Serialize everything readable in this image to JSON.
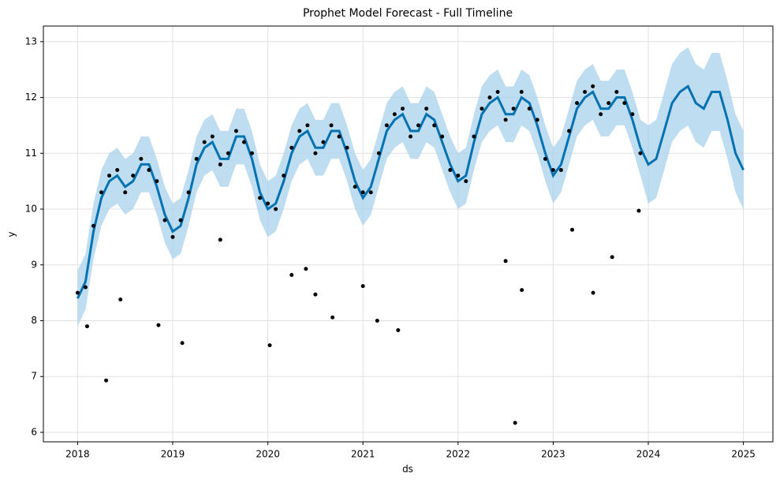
{
  "chart_data": {
    "type": "line",
    "title": "Prophet Model Forecast - Full Timeline",
    "xlabel": "ds",
    "ylabel": "y",
    "xlim": [
      2017.64,
      2025.31
    ],
    "ylim": [
      5.83,
      13.28
    ],
    "xticks": [
      2018,
      2019,
      2020,
      2021,
      2022,
      2023,
      2024,
      2025
    ],
    "yticks": [
      6,
      7,
      8,
      9,
      10,
      11,
      12,
      13
    ],
    "grid": true,
    "forecast": {
      "color": "#0072b2",
      "band_color": "#a9d2ec",
      "x": [
        2018,
        2018.083,
        2018.167,
        2018.25,
        2018.333,
        2018.417,
        2018.5,
        2018.583,
        2018.667,
        2018.75,
        2018.833,
        2018.917,
        2019,
        2019.083,
        2019.167,
        2019.25,
        2019.333,
        2019.417,
        2019.5,
        2019.583,
        2019.667,
        2019.75,
        2019.833,
        2019.917,
        2020,
        2020.083,
        2020.167,
        2020.25,
        2020.333,
        2020.417,
        2020.5,
        2020.583,
        2020.667,
        2020.75,
        2020.833,
        2020.917,
        2021,
        2021.083,
        2021.167,
        2021.25,
        2021.333,
        2021.417,
        2021.5,
        2021.583,
        2021.667,
        2021.75,
        2021.833,
        2021.917,
        2022,
        2022.083,
        2022.167,
        2022.25,
        2022.333,
        2022.417,
        2022.5,
        2022.583,
        2022.667,
        2022.75,
        2022.833,
        2022.917,
        2023,
        2023.083,
        2023.167,
        2023.25,
        2023.333,
        2023.417,
        2023.5,
        2023.583,
        2023.667,
        2023.75,
        2023.833,
        2023.917,
        2024,
        2024.083,
        2024.167,
        2024.25,
        2024.333,
        2024.417,
        2024.5,
        2024.583,
        2024.667,
        2024.75,
        2024.833,
        2024.917,
        2025
      ],
      "yhat": [
        8.4,
        8.7,
        9.6,
        10.2,
        10.5,
        10.6,
        10.4,
        10.5,
        10.8,
        10.8,
        10.4,
        9.9,
        9.6,
        9.7,
        10.2,
        10.8,
        11.1,
        11.2,
        10.9,
        10.9,
        11.3,
        11.3,
        10.9,
        10.3,
        10.0,
        10.1,
        10.5,
        11.0,
        11.3,
        11.4,
        11.1,
        11.1,
        11.4,
        11.4,
        11.0,
        10.5,
        10.2,
        10.4,
        10.9,
        11.4,
        11.6,
        11.7,
        11.4,
        11.4,
        11.7,
        11.6,
        11.2,
        10.8,
        10.5,
        10.6,
        11.2,
        11.7,
        11.9,
        12.0,
        11.7,
        11.7,
        12.0,
        11.9,
        11.5,
        11.0,
        10.6,
        10.8,
        11.3,
        11.8,
        12.0,
        12.1,
        11.8,
        11.8,
        12.0,
        12.0,
        11.6,
        11.1,
        10.8,
        10.9,
        11.4,
        11.9,
        12.1,
        12.2,
        11.9,
        11.8,
        12.1,
        12.1,
        11.6,
        11.0,
        10.7
      ],
      "yhat_lower": [
        7.9,
        8.2,
        9.1,
        9.7,
        10.0,
        10.1,
        9.9,
        10.0,
        10.3,
        10.3,
        9.9,
        9.4,
        9.1,
        9.2,
        9.7,
        10.3,
        10.6,
        10.7,
        10.4,
        10.4,
        10.8,
        10.8,
        10.4,
        9.8,
        9.5,
        9.6,
        10.0,
        10.5,
        10.8,
        10.9,
        10.6,
        10.6,
        10.9,
        10.9,
        10.5,
        10.0,
        9.7,
        9.9,
        10.4,
        10.9,
        11.1,
        11.2,
        10.9,
        10.9,
        11.2,
        11.1,
        10.7,
        10.3,
        10.0,
        10.1,
        10.7,
        11.2,
        11.4,
        11.5,
        11.2,
        11.2,
        11.5,
        11.4,
        11.0,
        10.5,
        10.1,
        10.3,
        10.8,
        11.3,
        11.5,
        11.6,
        11.3,
        11.3,
        11.5,
        11.5,
        11.1,
        10.6,
        10.1,
        10.2,
        10.7,
        11.2,
        11.4,
        11.5,
        11.2,
        11.1,
        11.4,
        11.4,
        10.9,
        10.3,
        10.0
      ],
      "yhat_upper": [
        8.9,
        9.2,
        10.1,
        10.7,
        11.0,
        11.1,
        10.9,
        11.0,
        11.3,
        11.3,
        10.9,
        10.4,
        10.1,
        10.2,
        10.7,
        11.3,
        11.6,
        11.7,
        11.4,
        11.4,
        11.8,
        11.8,
        11.4,
        10.8,
        10.5,
        10.6,
        11.0,
        11.5,
        11.8,
        11.9,
        11.6,
        11.6,
        11.9,
        11.9,
        11.5,
        11.0,
        10.7,
        10.9,
        11.4,
        11.9,
        12.1,
        12.2,
        11.9,
        11.9,
        12.2,
        12.1,
        11.7,
        11.3,
        11.0,
        11.1,
        11.7,
        12.2,
        12.4,
        12.5,
        12.2,
        12.2,
        12.5,
        12.4,
        12.0,
        11.5,
        11.1,
        11.3,
        11.8,
        12.3,
        12.5,
        12.6,
        12.3,
        12.3,
        12.5,
        12.5,
        12.1,
        11.6,
        11.5,
        11.6,
        12.1,
        12.6,
        12.8,
        12.9,
        12.6,
        12.5,
        12.8,
        12.8,
        12.3,
        11.7,
        11.4
      ]
    },
    "observed": {
      "color": "#000000",
      "x": [
        2018,
        2018.083,
        2018.167,
        2018.25,
        2018.333,
        2018.417,
        2018.5,
        2018.583,
        2018.667,
        2018.75,
        2018.833,
        2018.917,
        2019,
        2019.083,
        2019.167,
        2019.25,
        2019.333,
        2019.417,
        2019.5,
        2019.583,
        2019.667,
        2019.75,
        2019.833,
        2019.917,
        2020,
        2020.083,
        2020.167,
        2020.25,
        2020.333,
        2020.417,
        2020.5,
        2020.583,
        2020.667,
        2020.75,
        2020.833,
        2020.917,
        2021,
        2021.083,
        2021.167,
        2021.25,
        2021.333,
        2021.417,
        2021.5,
        2021.583,
        2021.667,
        2021.75,
        2021.833,
        2021.917,
        2022,
        2022.083,
        2022.167,
        2022.25,
        2022.333,
        2022.417,
        2022.5,
        2022.583,
        2022.667,
        2022.75,
        2022.833,
        2022.917,
        2023,
        2023.083,
        2023.167,
        2023.25,
        2023.333,
        2023.417,
        2023.5,
        2023.583,
        2023.667,
        2023.75,
        2023.833,
        2023.917,
        2018.3,
        2018.85,
        2019.1,
        2020.02,
        2020.5,
        2020.68,
        2021.0,
        2021.15,
        2021.37,
        2022.6,
        2022.67,
        2022.5,
        2023.42,
        2023.62,
        2019.5,
        2020.25,
        2020.4,
        2023.2,
        2023.9,
        2018.45,
        2018.1
      ],
      "y": [
        8.5,
        8.6,
        9.7,
        10.3,
        10.6,
        10.7,
        10.3,
        10.6,
        10.9,
        10.7,
        10.5,
        9.8,
        9.5,
        9.8,
        10.3,
        10.9,
        11.2,
        11.3,
        10.8,
        11.0,
        11.4,
        11.2,
        11.0,
        10.2,
        10.1,
        10.0,
        10.6,
        11.1,
        11.4,
        11.5,
        11.0,
        11.2,
        11.5,
        11.3,
        11.1,
        10.4,
        10.3,
        10.3,
        11.0,
        11.5,
        11.7,
        11.8,
        11.3,
        11.5,
        11.8,
        11.5,
        11.3,
        10.7,
        10.6,
        10.5,
        11.3,
        11.8,
        12.0,
        12.1,
        11.6,
        11.8,
        12.1,
        11.8,
        11.6,
        10.9,
        10.7,
        10.7,
        11.4,
        11.9,
        12.1,
        12.2,
        11.7,
        11.9,
        12.1,
        11.9,
        11.7,
        11.0,
        6.93,
        7.92,
        7.6,
        7.56,
        8.47,
        8.06,
        8.62,
        8.0,
        7.83,
        6.17,
        8.55,
        9.07,
        8.5,
        9.14,
        9.45,
        8.82,
        8.93,
        9.63,
        9.97,
        8.38,
        7.9
      ]
    }
  }
}
